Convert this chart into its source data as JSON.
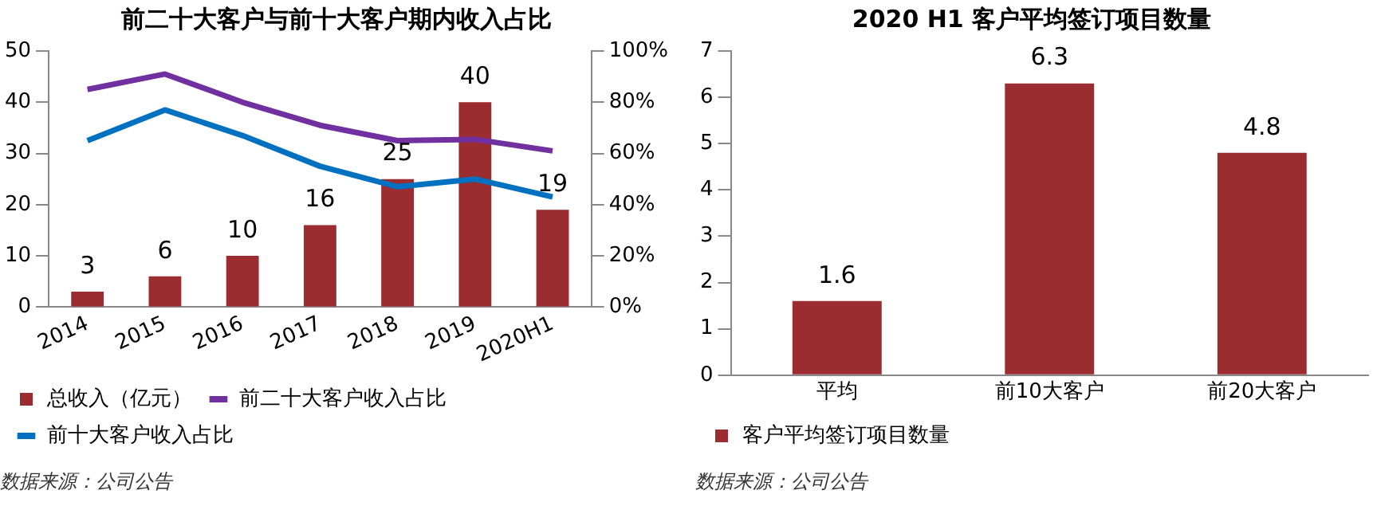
{
  "chart_data": [
    {
      "type": "bar",
      "title": "前二十大客户与前十大客户期内收入占比",
      "categories": [
        "2014",
        "2015",
        "2016",
        "2017",
        "2018",
        "2019",
        "2020H1"
      ],
      "series": [
        {
          "name": "总收入（亿元）",
          "color": "#9b2d30",
          "values": [
            3,
            6,
            10,
            16,
            25,
            40,
            19
          ],
          "value_labels": [
            "3",
            "6",
            "10",
            "16",
            "25",
            "40",
            "19"
          ]
        },
        {
          "name": "前二十大客户收入占比",
          "type": "line",
          "axis": "y2",
          "color": "#7030a0",
          "values": [
            85,
            91,
            80,
            71,
            65,
            65.5,
            61
          ]
        },
        {
          "name": "前十大客户收入占比",
          "type": "line",
          "axis": "y2",
          "color": "#0070c0",
          "values": [
            65,
            77,
            67,
            55,
            47,
            50,
            43
          ]
        }
      ],
      "ylim": [
        0,
        50
      ],
      "yticks": [
        0,
        10,
        20,
        30,
        40,
        50
      ],
      "y2lim": [
        0,
        100
      ],
      "y2ticks": [
        {
          "value": 0,
          "label": "0%"
        },
        {
          "value": 20,
          "label": "20%"
        },
        {
          "value": 40,
          "label": "40%"
        },
        {
          "value": 60,
          "label": "60%"
        },
        {
          "value": 80,
          "label": "80%"
        },
        {
          "value": 100,
          "label": "100%"
        }
      ],
      "legend": "bottom",
      "marker": "none",
      "annotations": [
        "数据来源：公司公告"
      ]
    },
    {
      "type": "bar",
      "title": "2020 H1 客户平均签订项目数量",
      "categories": [
        "平均",
        "前10大客户",
        "前20大客户"
      ],
      "series": [
        {
          "name": "客户平均签订项目数量",
          "color": "#9b2d30",
          "values": [
            1.6,
            6.3,
            4.8
          ]
        }
      ],
      "ylim": [
        0,
        7
      ],
      "yticks": [
        0,
        1,
        2,
        3,
        4,
        5,
        6,
        7
      ],
      "data_labels": true,
      "legend": "bottom",
      "annotations": [
        "数据来源：公司公告"
      ]
    }
  ]
}
